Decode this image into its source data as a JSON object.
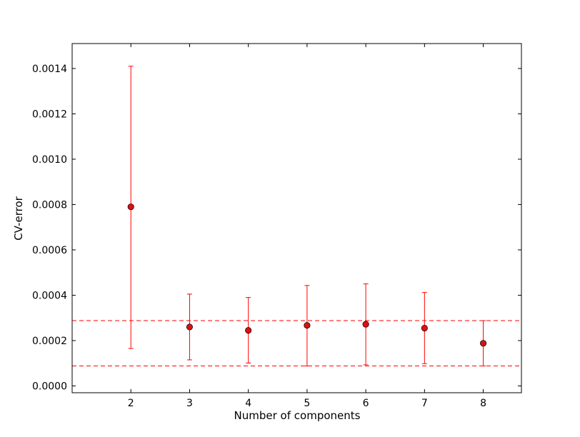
{
  "chart_data": {
    "type": "scatter",
    "title": "",
    "xlabel": "Number of components",
    "ylabel": "CV-error",
    "xlim": [
      1.0,
      8.65
    ],
    "ylim": [
      -3e-05,
      0.00151
    ],
    "xticks": [
      2,
      3,
      4,
      5,
      6,
      7,
      8
    ],
    "yticks": [
      0.0,
      0.0002,
      0.0004,
      0.0006,
      0.0008,
      0.001,
      0.0012,
      0.0014
    ],
    "ytick_labels": [
      "0.0000",
      "0.0002",
      "0.0004",
      "0.0006",
      "0.0008",
      "0.0010",
      "0.0012",
      "0.0014"
    ],
    "grid": false,
    "legend": "none",
    "series": [
      {
        "x": [
          2,
          3,
          4,
          5,
          6,
          7,
          8
        ],
        "y": [
          0.00079,
          0.00026,
          0.000245,
          0.000267,
          0.000272,
          0.000255,
          0.000188
        ],
        "yerr_low": [
          0.000165,
          0.000115,
          0.000101,
          8.8e-05,
          9.3e-05,
          9.8e-05,
          8.8e-05
        ],
        "yerr_high": [
          0.00141,
          0.000405,
          0.00039,
          0.000443,
          0.00045,
          0.000412,
          0.000288
        ],
        "color": "#ff0000",
        "marker_fill": "#dd1111"
      }
    ],
    "reference_lines": [
      {
        "y": 0.000288,
        "style": "dashed",
        "color": "#ff0000"
      },
      {
        "y": 8.8e-05,
        "style": "dashed",
        "color": "#ff0000"
      }
    ]
  }
}
